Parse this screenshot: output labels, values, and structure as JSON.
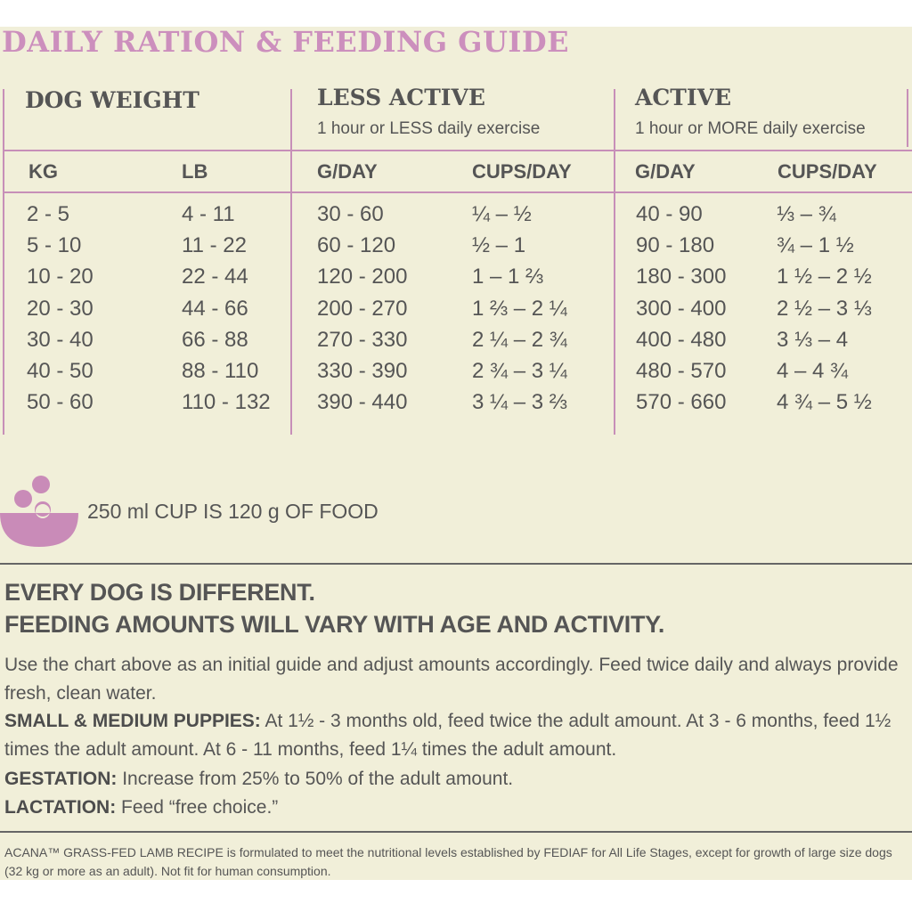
{
  "title": "DAILY RATION & FEEDING GUIDE",
  "headers": {
    "weight": "DOG WEIGHT",
    "less_active": "LESS ACTIVE",
    "less_active_sub": "1 hour or LESS daily exercise",
    "active": "ACTIVE",
    "active_sub": "1 hour or MORE daily exercise"
  },
  "columns": [
    "KG",
    "LB",
    "G/DAY",
    "CUPS/DAY",
    "G/DAY",
    "CUPS/DAY"
  ],
  "rows": [
    [
      "2 - 5",
      "4 - 11",
      "30 - 60",
      "¼ – ½",
      "40 - 90",
      "⅓ – ¾"
    ],
    [
      "5 - 10",
      "11 - 22",
      "60 - 120",
      "½ – 1",
      "90 - 180",
      "¾ – 1 ½"
    ],
    [
      "10 - 20",
      "22 - 44",
      "120 - 200",
      "1 – 1 ⅔",
      "180 - 300",
      "1 ½ – 2 ½"
    ],
    [
      "20 - 30",
      "44 - 66",
      "200 - 270",
      "1 ⅔ – 2 ¼",
      "300 - 400",
      "2 ½ – 3 ⅓"
    ],
    [
      "30 - 40",
      "66 - 88",
      "270 - 330",
      "2 ¼ – 2 ¾",
      "400 - 480",
      "3 ⅓ – 4"
    ],
    [
      "40 - 50",
      "88 - 110",
      "330 - 390",
      "2 ¾ – 3 ¼",
      "480 - 570",
      "4 – 4 ¾"
    ],
    [
      "50 - 60",
      "110 - 132",
      "390 - 440",
      "3 ¼ – 3 ⅔",
      "570 - 660",
      "4 ¾ – 5 ½"
    ]
  ],
  "cup_note": "250 ml CUP IS 120 g OF FOOD",
  "headline_1": "EVERY DOG IS DIFFERENT.",
  "headline_2": "FEEDING AMOUNTS WILL VARY WITH AGE AND ACTIVITY.",
  "intro": "Use the chart above as an initial guide and adjust amounts accordingly. Feed twice daily and always provide fresh, clean water.",
  "puppies_label": "SMALL & MEDIUM PUPPIES:",
  "puppies_text": " At 1½ - 3 months old, feed twice the adult amount. At 3 - 6 months, feed 1½ times the adult amount. At 6 - 11 months, feed 1¼ times the adult amount.",
  "gestation_label": "GESTATION:",
  "gestation_text": " Increase from 25% to 50% of the adult amount.",
  "lactation_label": "LACTATION:",
  "lactation_text": " Feed “free choice.”",
  "footnote": "ACANA™ GRASS-FED LAMB RECIPE is formulated to meet the nutritional levels established by FEDIAF for All Life Stages, except for growth of large size dogs (32 kg or more as an adult). Not fit for human consumption.",
  "colors": {
    "accent": "#cc8fbd",
    "background": "#f1efd9",
    "text": "#555555"
  }
}
